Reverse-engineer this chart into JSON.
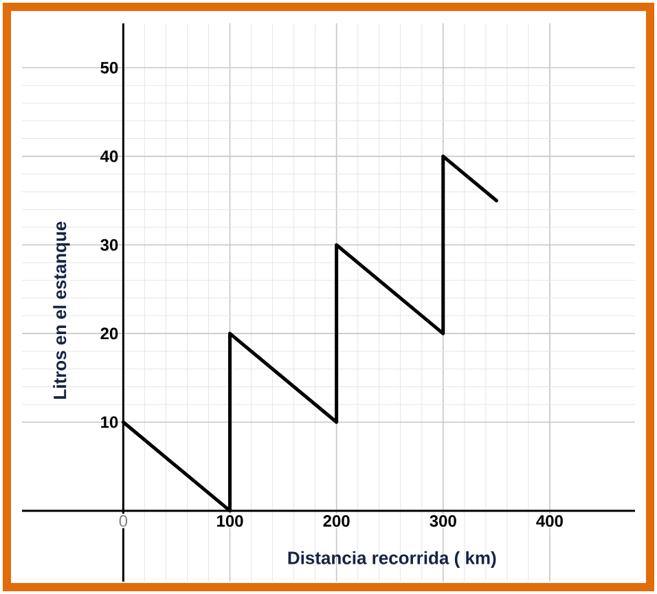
{
  "chart_data": {
    "type": "line",
    "xlabel": "Distancia recorrida ( km)",
    "ylabel": "Litros en el  estanque",
    "x": [
      0,
      100,
      100,
      200,
      200,
      300,
      300,
      350
    ],
    "values": [
      10,
      0,
      20,
      10,
      30,
      20,
      40,
      35
    ],
    "color": "#000000",
    "xlim": [
      -95,
      480
    ],
    "ylim": [
      -8,
      55
    ],
    "xticks": [
      0,
      100,
      200,
      300,
      400
    ],
    "yticks": [
      10,
      20,
      30,
      40,
      50
    ],
    "grid": true,
    "marker": "none",
    "line_style": "solid"
  }
}
